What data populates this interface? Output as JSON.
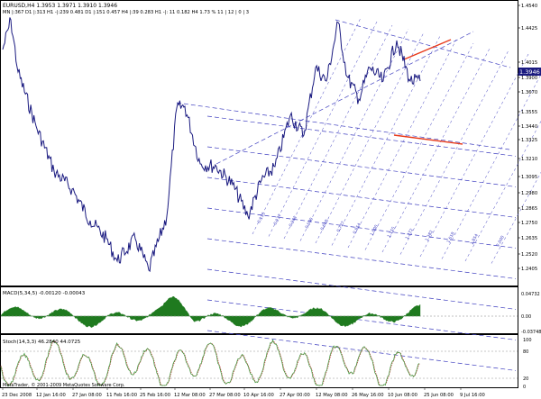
{
  "header": {
    "line1": "EURUSD,H4  1.3953 1.3971 1.3910 1.3946",
    "line2": "MN |:367  D1 |:313  H1 -|:239  0.481  D1 |:151  0.457  H4 |:39  0.283  H1 -|: 11  0.182  H4  1.73 %  11 | 12 | 0 | 3"
  },
  "current_price_label": "1.3946",
  "colors": {
    "price_line": "#1a1a80",
    "channel_line": "#4040c0",
    "trend_red": "#e83a1a",
    "macd_fill": "#1f7a1f",
    "stoch_main": "#3d9a3d",
    "stoch_signal": "#c03030",
    "price_tag_bg": "#1a1a80"
  },
  "main_panel": {
    "y_ticks": [
      "1.4540",
      "1.4425",
      "1.4015",
      "1.3900",
      "1.3670",
      "1.3555",
      "1.3440",
      "1.3325",
      "1.3210",
      "1.3095",
      "1.2980",
      "1.2865",
      "1.2750",
      "1.2635",
      "1.2520",
      "1.2405"
    ]
  },
  "fan_labels": [
    "0.155",
    "0.237",
    "0.382",
    "0.500",
    "0.618",
    "0.727",
    "0.854",
    "1.000",
    "1.155",
    "1.272",
    "1.382",
    "1.618",
    "1.854",
    "2.000"
  ],
  "macd_panel": {
    "label": "MACD(5,34,5) -0.00120 -0.00043",
    "y_ticks": [
      "0.04732",
      "0.00",
      "-0.03748"
    ]
  },
  "stoch_panel": {
    "label": "Stoch(14,3,3) 46.2840 44.0725",
    "y_ticks": [
      "100",
      "80",
      "20",
      "0"
    ]
  },
  "footer": {
    "copyright": "MetaTrader, © 2001-2009 MetaQuotes Software Corp."
  },
  "x_axis": [
    "23 Dec 2008",
    "12 Jan 16:00",
    "27 Jan 08:00",
    "11 Feb 16:00",
    "25 Feb 16:00",
    "12 Mar 08:00",
    "27 Mar 08:00",
    "10 Apr 16:00",
    "27 Apr 00:00",
    "12 May 08:00",
    "26 May 16:00",
    "10 Jun 08:00",
    "25 Jun 08:00",
    "9 Jul 16:00"
  ]
}
